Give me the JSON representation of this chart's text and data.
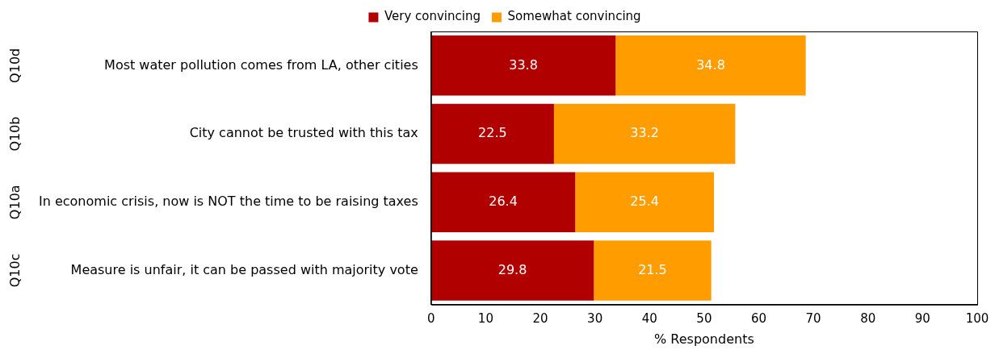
{
  "chart_data": {
    "type": "bar",
    "orientation": "horizontal",
    "stacked": true,
    "categories": [
      "Most water pollution comes from LA, other cities",
      "City cannot be trusted with this tax",
      "In economic crisis, now is NOT the time to be raising taxes",
      "Measure is unfair, it can be passed with majority vote"
    ],
    "series": [
      {
        "name": "Very convincing",
        "color": "#b00000",
        "values": [
          33.8,
          22.5,
          26.4,
          29.8
        ]
      },
      {
        "name": "Somewhat convincing",
        "color": "#ff9c00",
        "values": [
          34.8,
          33.2,
          25.4,
          21.5
        ]
      }
    ],
    "xlabel": "% Respondents",
    "xlim": [
      0,
      100
    ],
    "xticks": [
      0,
      10,
      20,
      30,
      40,
      50,
      60,
      70,
      80,
      90,
      100
    ],
    "annotations": [
      "Q10d",
      "Q10b",
      "Q10a",
      "Q10c"
    ],
    "data_labels": true,
    "legend": "top",
    "grid": false
  }
}
